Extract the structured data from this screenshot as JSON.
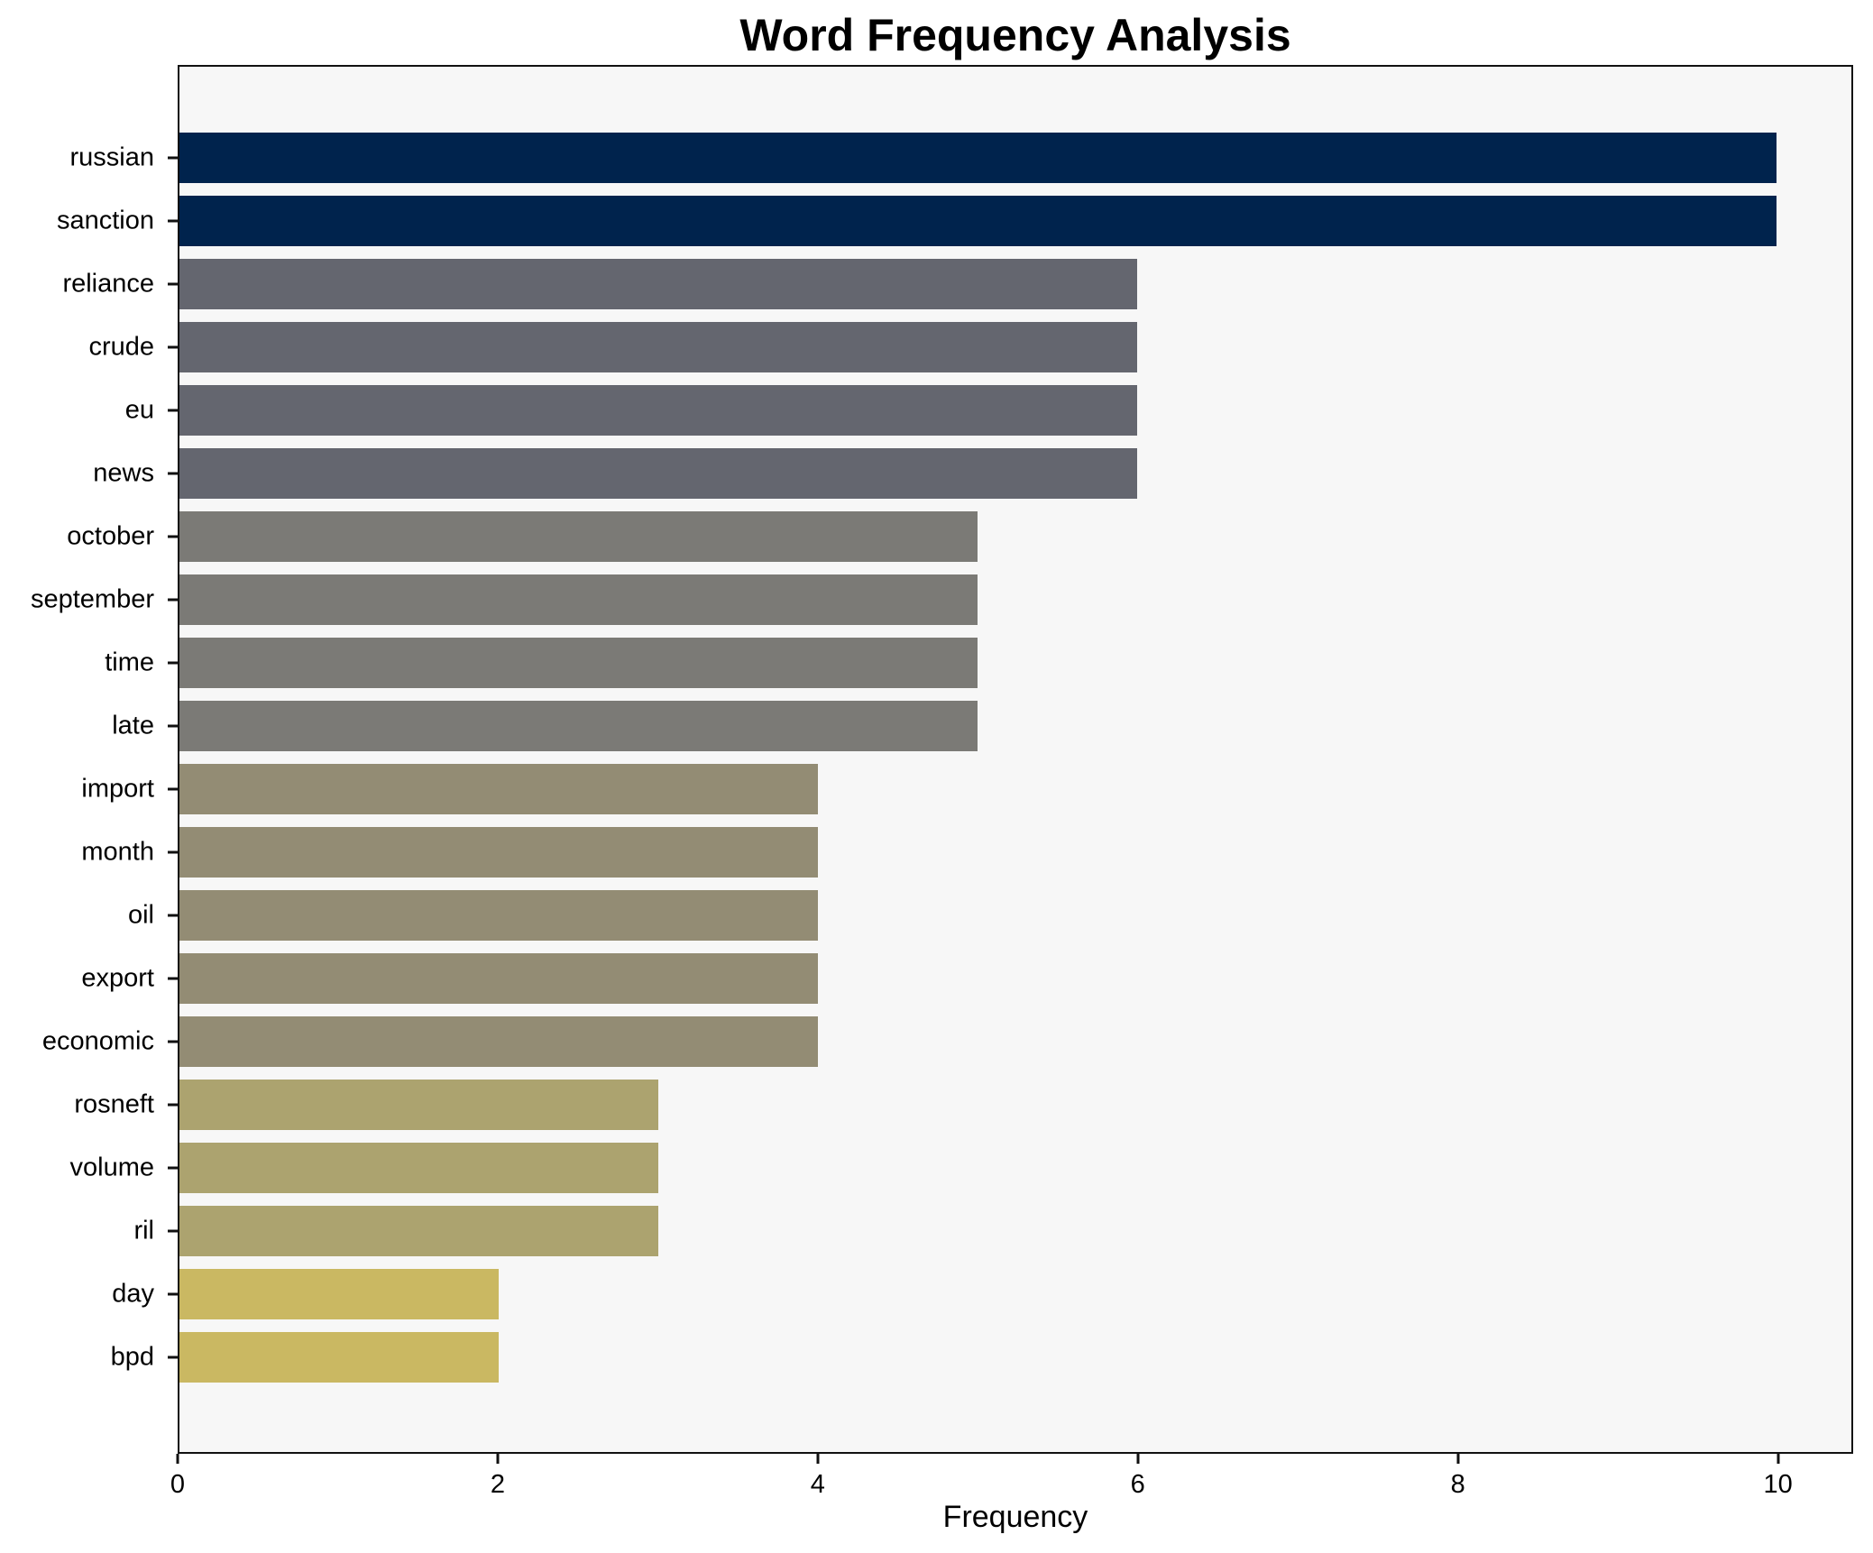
{
  "chart_data": {
    "type": "bar",
    "orientation": "horizontal",
    "title": "Word Frequency Analysis",
    "xlabel": "Frequency",
    "ylabel": "",
    "xlim": [
      0,
      10.47
    ],
    "x_ticks": [
      0,
      2,
      4,
      6,
      8,
      10
    ],
    "grid": false,
    "legend": "none",
    "plot_background": "#f7f7f7",
    "figure_background": "#ffffff",
    "spine_color": "#111111",
    "categories": [
      "russian",
      "sanction",
      "reliance",
      "crude",
      "eu",
      "news",
      "october",
      "september",
      "time",
      "late",
      "import",
      "month",
      "oil",
      "export",
      "economic",
      "rosneft",
      "volume",
      "ril",
      "day",
      "bpd"
    ],
    "values": [
      10,
      10,
      6,
      6,
      6,
      6,
      5,
      5,
      5,
      5,
      4,
      4,
      4,
      4,
      4,
      3,
      3,
      3,
      2,
      2
    ],
    "colors": [
      "#00234d",
      "#00234d",
      "#64666f",
      "#64666f",
      "#64666f",
      "#64666f",
      "#7b7a76",
      "#7b7a76",
      "#7b7a76",
      "#7b7a76",
      "#938c74",
      "#938c74",
      "#938c74",
      "#938c74",
      "#938c74",
      "#aca36f",
      "#aca36f",
      "#aca36f",
      "#cab862",
      "#cab862"
    ]
  }
}
